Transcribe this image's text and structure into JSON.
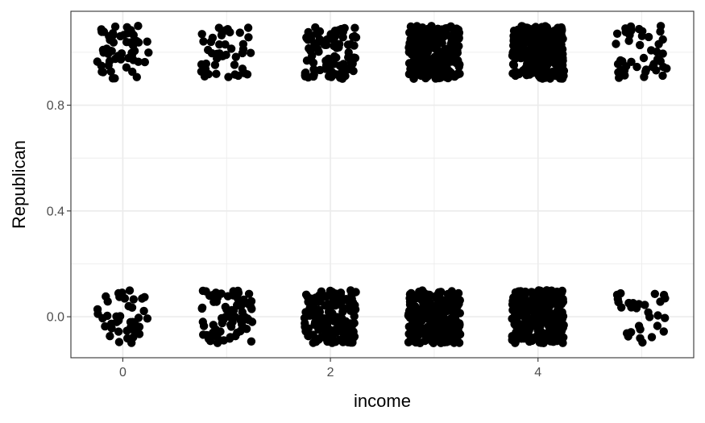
{
  "chart_data": {
    "type": "scatter",
    "title": "",
    "xlabel": "income",
    "ylabel": "Republican",
    "x_categories": [
      0,
      1,
      2,
      3,
      4,
      5
    ],
    "x_tick_labels": [
      "0",
      "2",
      "4"
    ],
    "x_tick_values": [
      0,
      2,
      4
    ],
    "y_tick_labels": [
      "0.0",
      "0.4",
      "0.8"
    ],
    "y_tick_values": [
      0.0,
      0.4,
      0.8
    ],
    "xlim": [
      -0.5,
      5.5
    ],
    "ylim": [
      -0.155,
      1.155
    ],
    "grid": true,
    "legend": "none",
    "jitter": {
      "x_width": 0.25,
      "y_height": 0.1
    },
    "point_color": "#000000",
    "groups": [
      {
        "income": 0,
        "Republican": 0,
        "n": 45
      },
      {
        "income": 0,
        "Republican": 1,
        "n": 55
      },
      {
        "income": 1,
        "Republican": 0,
        "n": 75
      },
      {
        "income": 1,
        "Republican": 1,
        "n": 45
      },
      {
        "income": 2,
        "Republican": 0,
        "n": 160
      },
      {
        "income": 2,
        "Republican": 1,
        "n": 90
      },
      {
        "income": 3,
        "Republican": 0,
        "n": 280
      },
      {
        "income": 3,
        "Republican": 1,
        "n": 230
      },
      {
        "income": 4,
        "Republican": 0,
        "n": 250
      },
      {
        "income": 4,
        "Republican": 1,
        "n": 260
      },
      {
        "income": 5,
        "Republican": 0,
        "n": 30
      },
      {
        "income": 5,
        "Republican": 1,
        "n": 45
      }
    ]
  }
}
